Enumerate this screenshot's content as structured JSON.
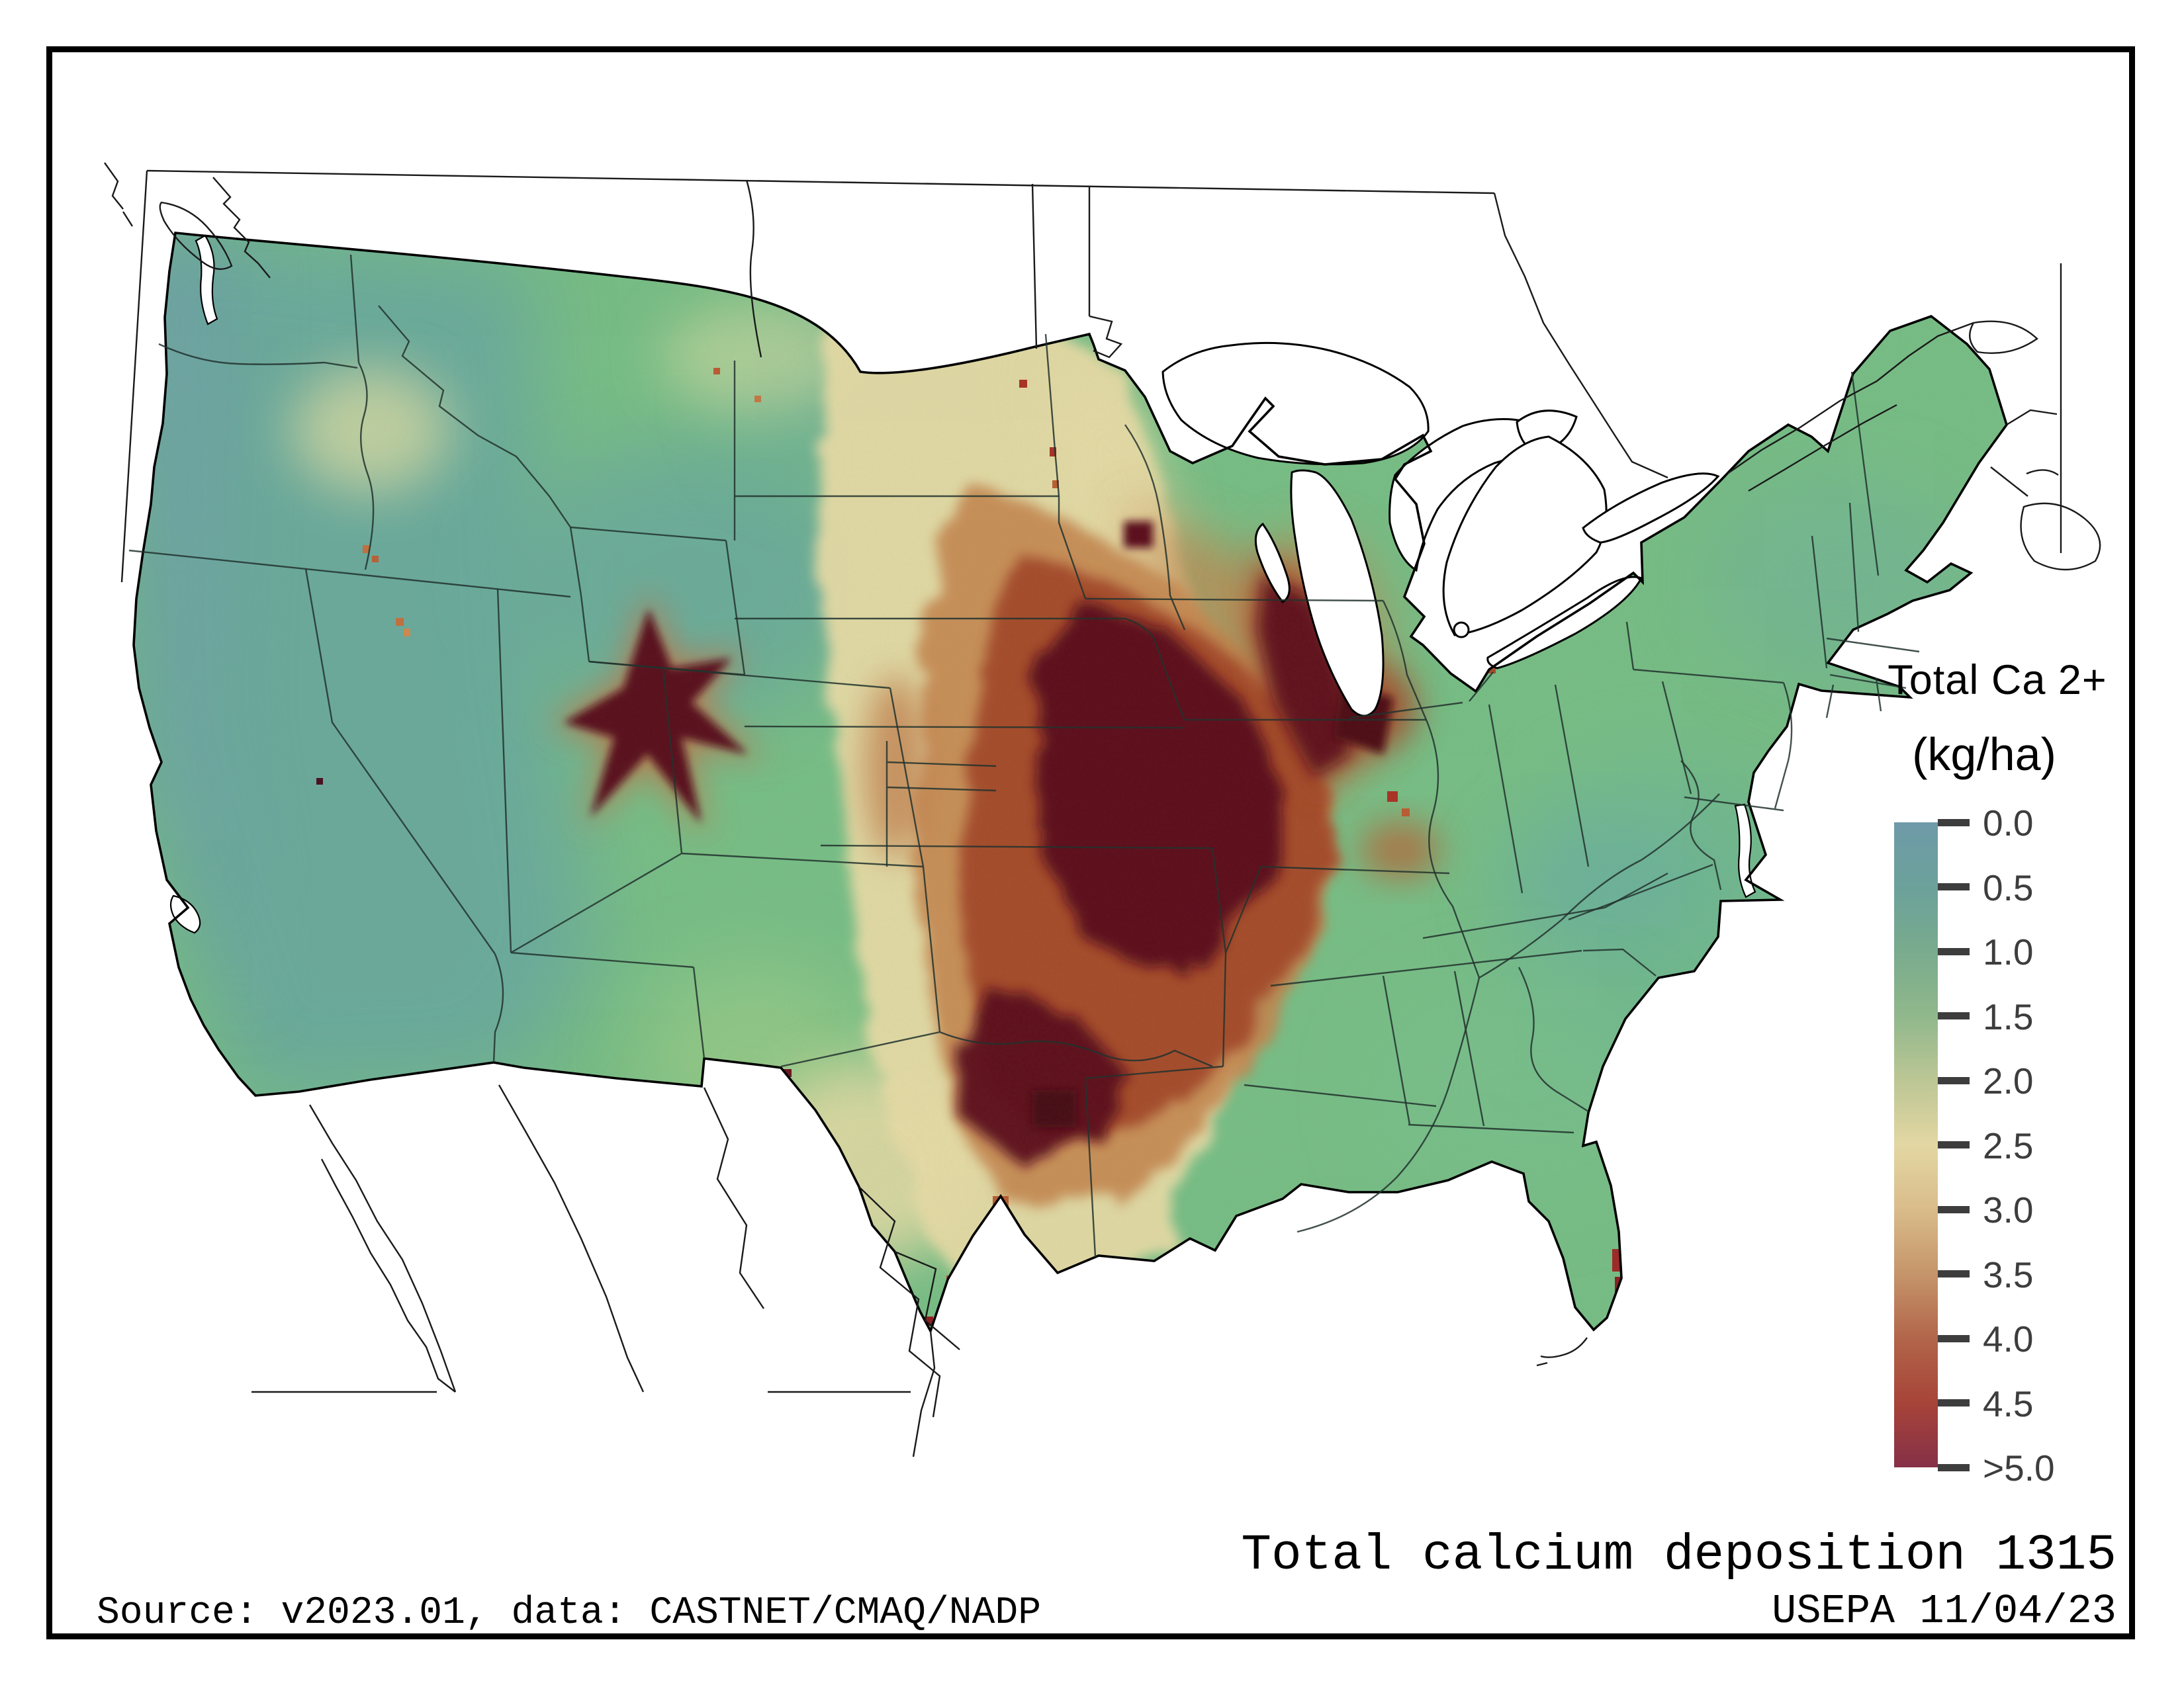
{
  "legend": {
    "title": "Total Ca 2+",
    "units": "(kg/ha)",
    "ticks": [
      "0.0",
      "0.5",
      "1.0",
      "1.5",
      "2.0",
      "2.5",
      "3.0",
      "3.5",
      "4.0",
      "4.5",
      ">5.0"
    ],
    "gradient_colors": [
      "#6f9aa8",
      "#6ca19b",
      "#79ab8d",
      "#90b88c",
      "#bcc695",
      "#e3d7a3",
      "#d9bc8a",
      "#c5956a",
      "#b2654a",
      "#a74439",
      "#863048"
    ],
    "tick_color": "#3d3d3d"
  },
  "captions": {
    "map_title": "Total calcium deposition 1315",
    "agency_date": "USEPA 11/04/23",
    "source": "Source: v2023.01, data: CASTNET/CMAQ/NADP"
  },
  "map": {
    "palette": {
      "base_green": "#76bd86",
      "west_teal": "#68a79f",
      "coast_blue": "#6f9cab",
      "plains_tan": "#e4daa6",
      "hot_orange": "#c2854f",
      "hot_brick": "#a24a2c",
      "core_maroon": "#5a0e1e",
      "water": "#ffffff",
      "boundary": "#000000"
    }
  }
}
